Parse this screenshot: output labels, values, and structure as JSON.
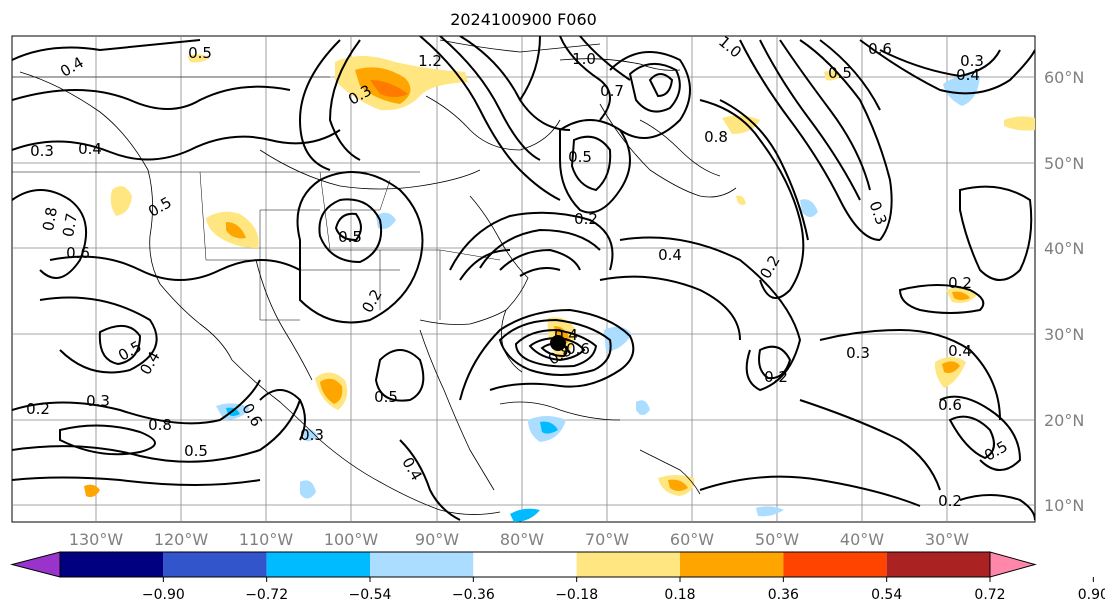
{
  "title": "2024100900 F060",
  "lon_labels": [
    "130°W",
    "120°W",
    "110°W",
    "100°W",
    "90°W",
    "80°W",
    "70°W",
    "60°W",
    "50°W",
    "40°W",
    "30°W"
  ],
  "lat_labels": [
    "60°N",
    "50°N",
    "40°N",
    "30°N",
    "20°N",
    "10°N"
  ],
  "colorbar": {
    "ticks": [
      "−0.90",
      "−0.72",
      "−0.54",
      "−0.36",
      "−0.18",
      "0.18",
      "0.36",
      "0.54",
      "0.72",
      "0.90"
    ],
    "colors": [
      "#9933cc",
      "#000080",
      "#3355cc",
      "#00bbff",
      "#aaddff",
      "#ffffff",
      "#ffe680",
      "#ffa500",
      "#ff4400",
      "#aa2222",
      "#ff88aa"
    ]
  },
  "contour_labels": [
    "0.5",
    "0.4",
    "0.3",
    "0.4",
    "1.2",
    "1.0",
    "0.7",
    "1.0",
    "0.6",
    "0.5",
    "0.3",
    "0.4",
    "0.8",
    "0.7",
    "0.6",
    "0.5",
    "0.8",
    "0.5",
    "0.4",
    "0.3",
    "0.2",
    "0.8",
    "0.5",
    "0.6",
    "0.3",
    "0.5",
    "0.4",
    "0.2",
    "0.5",
    "0.2",
    "0.5",
    "0.3",
    "0.4",
    "0.2",
    "0.3",
    "0.2",
    "0.6",
    "0.4",
    "0.2",
    "0.8",
    "0.6",
    "0.4",
    "0.3",
    "0.2",
    "0.5"
  ],
  "storm_marker": "storm-center"
}
